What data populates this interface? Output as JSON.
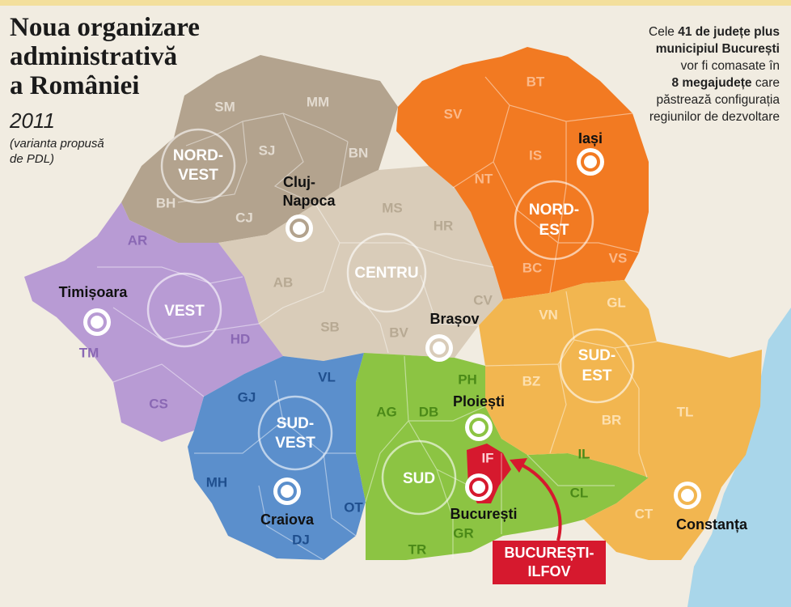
{
  "header": {
    "title_lines": [
      "Noua organizare",
      "administrativă",
      "a României"
    ],
    "year": "2011",
    "note_lines": [
      "(varianta propusă",
      "de PDL)"
    ]
  },
  "description": {
    "lines": [
      [
        {
          "text": "Cele "
        },
        {
          "text": "41 de județe plus",
          "bold": true
        }
      ],
      [
        {
          "text": "municipiul București",
          "bold": true
        }
      ],
      [
        {
          "text": "vor fi comasate în"
        }
      ],
      [
        {
          "text": "8 megajudețe",
          "bold": true
        },
        {
          "text": " care"
        }
      ],
      [
        {
          "text": "păstrează configurația"
        }
      ],
      [
        {
          "text": "regiunilor de dezvoltare"
        }
      ]
    ]
  },
  "regions": [
    {
      "name_lines": [
        "NORD-",
        "VEST"
      ],
      "color": "#b3a38e",
      "counties": [
        "SM",
        "MM",
        "SJ",
        "BN",
        "BH",
        "CJ"
      ],
      "capital_lines": [
        "Cluj-",
        "Napoca"
      ]
    },
    {
      "name_lines": [
        "CENTRU"
      ],
      "color": "#d9ccb9",
      "counties": [
        "MS",
        "HR",
        "AB",
        "SB",
        "BV",
        "CV"
      ],
      "capital_lines": [
        "Brașov"
      ]
    },
    {
      "name_lines": [
        "NORD-",
        "EST"
      ],
      "color": "#f27a22",
      "counties": [
        "BT",
        "SV",
        "IS",
        "NT",
        "BC",
        "VS"
      ],
      "capital_lines": [
        "Iași"
      ]
    },
    {
      "name_lines": [
        "VEST"
      ],
      "color": "#b89bd4",
      "counties": [
        "AR",
        "TM",
        "HD",
        "CS"
      ],
      "capital_lines": [
        "Timișoara"
      ]
    },
    {
      "name_lines": [
        "SUD-",
        "VEST"
      ],
      "color": "#5b8fcc",
      "counties": [
        "GJ",
        "VL",
        "MH",
        "DJ",
        "OT"
      ],
      "capital_lines": [
        "Craiova"
      ]
    },
    {
      "name_lines": [
        "SUD"
      ],
      "color": "#8cc443",
      "counties": [
        "AG",
        "DB",
        "PH",
        "TR",
        "GR",
        "IL",
        "CL"
      ],
      "capital_lines": [
        "Ploiești"
      ]
    },
    {
      "name_lines": [
        "SUD-",
        "EST"
      ],
      "color": "#f2b650",
      "counties": [
        "VN",
        "GL",
        "BZ",
        "BR",
        "TL",
        "CT"
      ],
      "capital_lines": [
        "Constanța"
      ]
    },
    {
      "name_lines": [
        "BUCUREȘTI-",
        "ILFOV"
      ],
      "color": "#d6192e",
      "counties": [
        "IF"
      ],
      "capital_lines": [
        "București"
      ]
    }
  ]
}
